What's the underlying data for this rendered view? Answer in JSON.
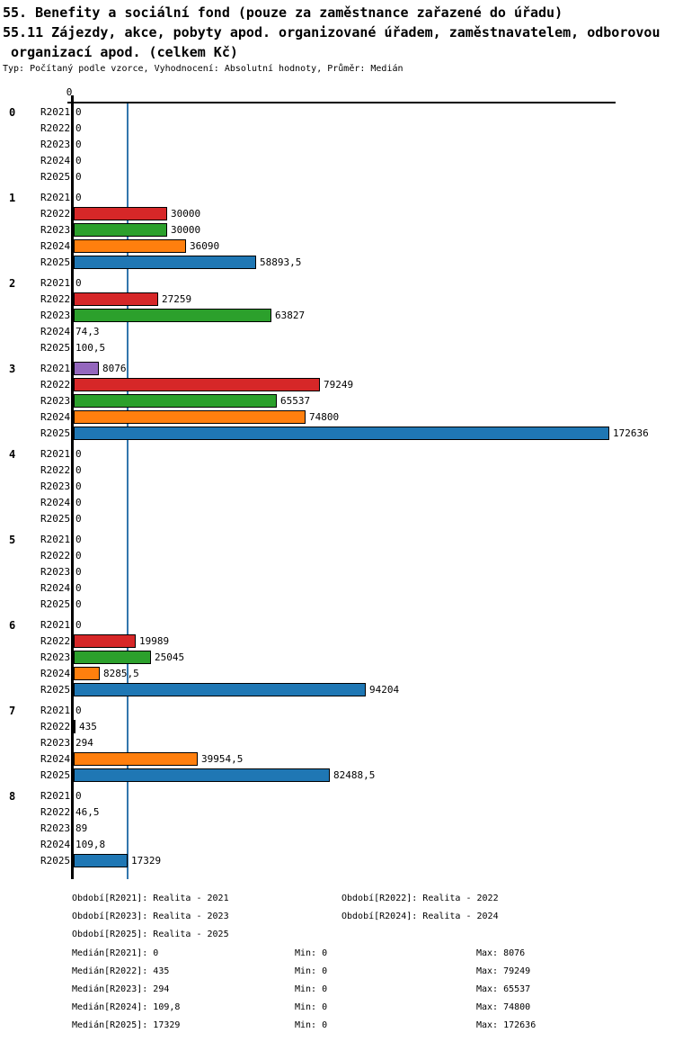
{
  "title": {
    "line1": "55. Benefity a sociální fond (pouze za zaměstnance zařazené do úřadu)",
    "line2": "55.11 Zájezdy, akce, pobyty apod. organizované úřadem, zaměstnavatelem, odborovou",
    "line3": " organizací apod. (celkem Kč)",
    "meta": "Typ: Počítaný podle vzorce, Vyhodnocení: Absolutní hodnoty, Průměr: Medián"
  },
  "chart_data": {
    "type": "bar",
    "orientation": "horizontal",
    "axis_origin_label": "0",
    "xlim": [
      0,
      175000
    ],
    "grid": false,
    "series": [
      "R2021",
      "R2022",
      "R2023",
      "R2024",
      "R2025"
    ],
    "series_colors": {
      "R2021": "#9467bd",
      "R2022": "#d62728",
      "R2023": "#2ca02c",
      "R2024": "#ff7f0e",
      "R2025": "#1f77b4"
    },
    "median_line": {
      "value": 17329,
      "color": "#3377ad"
    },
    "groups": [
      {
        "category": "0",
        "values": [
          0,
          0,
          0,
          0,
          0
        ],
        "labels": [
          "0",
          "0",
          "0",
          "0",
          "0"
        ]
      },
      {
        "category": "1",
        "values": [
          0,
          30000,
          30000,
          36090,
          58893.5
        ],
        "labels": [
          "0",
          "30000",
          "30000",
          "36090",
          "58893,5"
        ]
      },
      {
        "category": "2",
        "values": [
          0,
          27259,
          63827,
          74.3,
          100.5
        ],
        "labels": [
          "0",
          "27259",
          "63827",
          "74,3",
          "100,5"
        ]
      },
      {
        "category": "3",
        "values": [
          8076,
          79249,
          65537,
          74800,
          172636
        ],
        "labels": [
          "8076",
          "79249",
          "65537",
          "74800",
          "172636"
        ]
      },
      {
        "category": "4",
        "values": [
          0,
          0,
          0,
          0,
          0
        ],
        "labels": [
          "0",
          "0",
          "0",
          "0",
          "0"
        ]
      },
      {
        "category": "5",
        "values": [
          0,
          0,
          0,
          0,
          0
        ],
        "labels": [
          "0",
          "0",
          "0",
          "0",
          "0"
        ]
      },
      {
        "category": "6",
        "values": [
          0,
          19989,
          25045,
          8285.5,
          94204
        ],
        "labels": [
          "0",
          "19989",
          "25045",
          "8285,5",
          "94204"
        ]
      },
      {
        "category": "7",
        "values": [
          0,
          435,
          294,
          39954.5,
          82488.5
        ],
        "labels": [
          "0",
          "435",
          "294",
          "39954,5",
          "82488,5"
        ]
      },
      {
        "category": "8",
        "values": [
          0,
          46.5,
          89,
          109.8,
          17329
        ],
        "labels": [
          "0",
          "46,5",
          "89",
          "109,8",
          "17329"
        ]
      }
    ]
  },
  "footer": {
    "period_rows": [
      [
        "Období[R2021]: Realita - 2021",
        "Období[R2022]: Realita - 2022"
      ],
      [
        "Období[R2023]: Realita - 2023",
        "Období[R2024]: Realita - 2024"
      ],
      [
        "Období[R2025]: Realita - 2025"
      ]
    ],
    "stat_rows": [
      {
        "median": "Medián[R2021]: 0",
        "min": "Min: 0",
        "max": "Max: 8076"
      },
      {
        "median": "Medián[R2022]: 435",
        "min": "Min: 0",
        "max": "Max: 79249"
      },
      {
        "median": "Medián[R2023]: 294",
        "min": "Min: 0",
        "max": "Max: 65537"
      },
      {
        "median": "Medián[R2024]: 109,8",
        "min": "Min: 0",
        "max": "Max: 74800"
      },
      {
        "median": "Medián[R2025]: 17329",
        "min": "Min: 0",
        "max": "Max: 172636"
      }
    ]
  }
}
